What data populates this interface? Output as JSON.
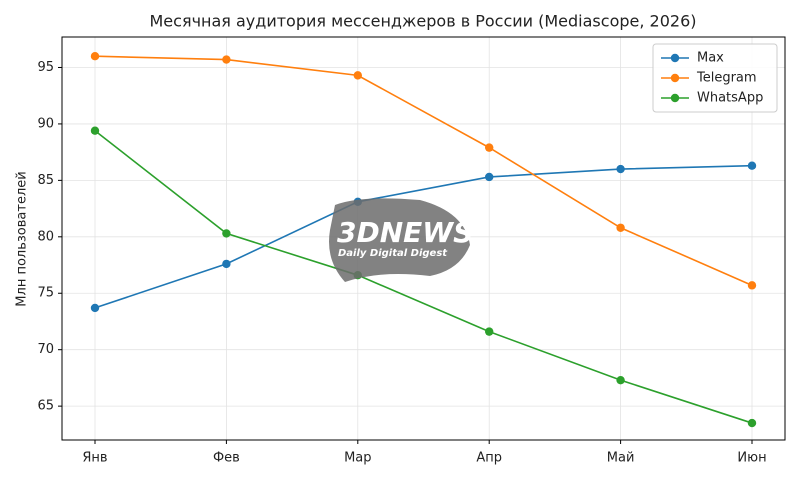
{
  "chart_data": {
    "type": "line",
    "title": "Месячная аудитория мессенджеров в России (Mediascope, 2026)",
    "y_label": "Млн пользователей",
    "categories": [
      "Янв",
      "Фев",
      "Мар",
      "Апр",
      "Май",
      "Июн"
    ],
    "series": [
      {
        "name": "Max",
        "color": "#1f77b4",
        "values": [
          73.7,
          77.6,
          83.1,
          85.3,
          86.0,
          86.3
        ]
      },
      {
        "name": "Telegram",
        "color": "#ff7f0e",
        "values": [
          96.0,
          95.7,
          94.3,
          87.9,
          80.8,
          75.7
        ]
      },
      {
        "name": "WhatsApp",
        "color": "#2ca02c",
        "values": [
          89.4,
          80.3,
          76.6,
          71.6,
          67.3,
          63.5
        ]
      }
    ],
    "ylim": [
      62.0,
      97.7
    ],
    "yticks": [
      65,
      70,
      75,
      80,
      85,
      90,
      95
    ],
    "grid": true,
    "legend": "upper right",
    "watermark": {
      "logo": "3DNEWS",
      "tagline": "Daily Digital Digest"
    }
  }
}
